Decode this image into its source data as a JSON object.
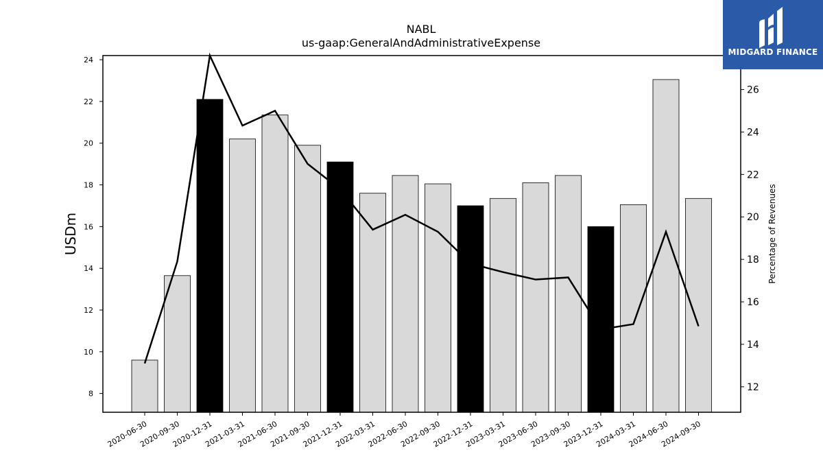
{
  "chart_data": {
    "type": "bar",
    "title": "NABL",
    "subtitle": "us-gaap:GeneralAndAdministrativeExpense",
    "ylabel": "USDm",
    "y2label": "Percentage of Revenues",
    "ylim": [
      7.1,
      24.2
    ],
    "y2lim": [
      10.8,
      27.6
    ],
    "yticks": [
      8,
      10,
      12,
      14,
      16,
      18,
      20,
      22,
      24
    ],
    "y2ticks": [
      12,
      14,
      16,
      18,
      20,
      22,
      24,
      26
    ],
    "categories": [
      "2020-06-30",
      "2020-09-30",
      "2020-12-31",
      "2021-03-31",
      "2021-06-30",
      "2021-09-30",
      "2021-12-31",
      "2022-03-31",
      "2022-06-30",
      "2022-09-30",
      "2022-12-31",
      "2023-03-31",
      "2023-06-30",
      "2023-09-30",
      "2023-12-31",
      "2024-03-31",
      "2024-06-30",
      "2024-09-30"
    ],
    "series": [
      {
        "type": "bar",
        "axis": "left",
        "values": [
          9.6,
          13.65,
          22.1,
          20.2,
          21.35,
          19.9,
          19.1,
          17.6,
          18.45,
          18.05,
          17.0,
          17.35,
          18.1,
          18.45,
          16.0,
          17.05,
          23.05,
          17.35
        ],
        "highlight": [
          false,
          false,
          true,
          false,
          false,
          false,
          true,
          false,
          false,
          false,
          true,
          false,
          false,
          false,
          true,
          false,
          false,
          false
        ]
      },
      {
        "type": "line",
        "axis": "right",
        "values": [
          13.1,
          17.9,
          27.6,
          24.3,
          25.0,
          22.5,
          21.3,
          19.4,
          20.1,
          19.3,
          17.8,
          17.4,
          17.05,
          17.15,
          14.7,
          14.95,
          19.3,
          14.85
        ]
      }
    ],
    "colors": {
      "bar": "#d9d9d9",
      "bar_highlight": "#000000",
      "line": "#000000"
    },
    "grid": false,
    "legend": "none"
  },
  "logo": {
    "text": "MIDGARD FINANCE",
    "color": "#2b5aa8"
  }
}
